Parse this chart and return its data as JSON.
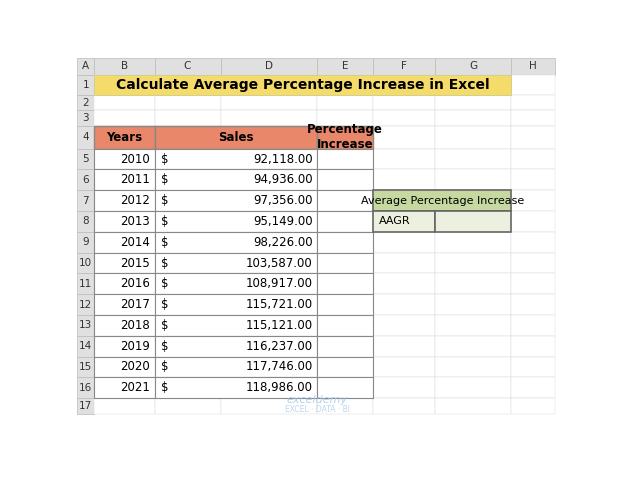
{
  "title": "Calculate Average Percentage Increase in Excel",
  "title_bg": "#F5DC6A",
  "title_color": "#000000",
  "col_headers": [
    "Years",
    "Sales",
    "Percentage\nIncrease"
  ],
  "header_bg": "#E8876A",
  "years": [
    2010,
    2011,
    2012,
    2013,
    2014,
    2015,
    2016,
    2017,
    2018,
    2019,
    2020,
    2021
  ],
  "sales_dollar": [
    "$",
    "$",
    "$",
    "$",
    "$",
    "$",
    "$",
    "$",
    "$",
    "$",
    "$",
    "$"
  ],
  "sales_values": [
    "92,118.00",
    "94,936.00",
    "97,356.00",
    "95,149.00",
    "98,226.00",
    "103,587.00",
    "108,917.00",
    "115,721.00",
    "115,121.00",
    "116,237.00",
    "117,746.00",
    "118,986.00"
  ],
  "row_bg": "#FFFFFF",
  "side_table_title": "Average Percentage Increase",
  "side_table_label": "AAGR",
  "side_table_header_bg": "#C6D9A0",
  "side_table_row_bg": "#EBF1DE",
  "col_letters": [
    "A",
    "B",
    "C",
    "D",
    "E",
    "F",
    "G",
    "H"
  ],
  "row_numbers": [
    "1",
    "2",
    "3",
    "4",
    "5",
    "6",
    "7",
    "8",
    "9",
    "10",
    "11",
    "12",
    "13",
    "14",
    "15",
    "16",
    "17"
  ],
  "sheet_bg": "#FFFFFF",
  "header_bg_gray": "#E0E0E0",
  "col_border": "#BBBBBB",
  "table_border": "#888888",
  "watermark_color": "#9FC5E8"
}
